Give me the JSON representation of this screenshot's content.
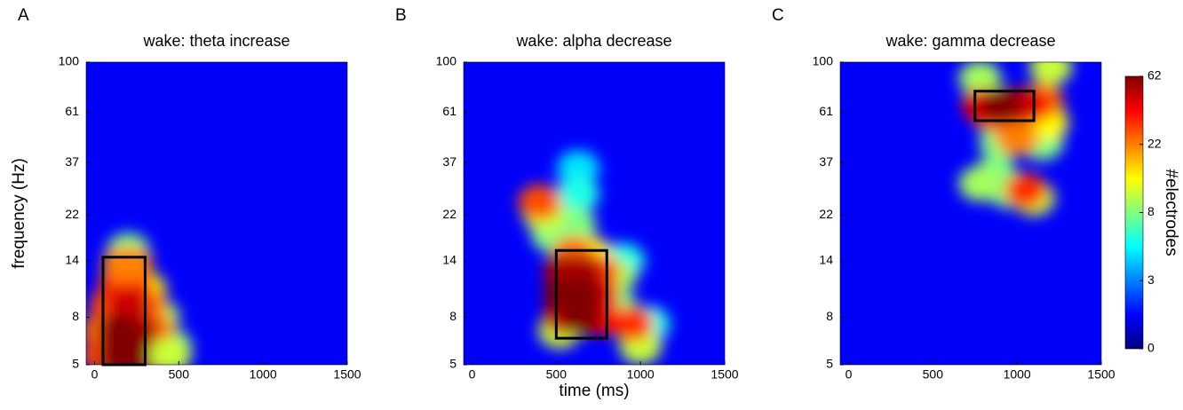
{
  "chart_data": [
    {
      "type": "heatmap",
      "panel_label": "A",
      "title": "wake: theta increase",
      "ylabel": "frequency (Hz)",
      "xlim": [
        -50,
        1500
      ],
      "xticks": [
        0,
        500,
        1000,
        1500
      ],
      "ylim": [
        5,
        100
      ],
      "yticks": [
        5,
        8,
        14,
        22,
        37,
        61,
        100
      ],
      "yscale": "log",
      "x": [
        200,
        380,
        450,
        300,
        50,
        350,
        100,
        350,
        300,
        150,
        220,
        170,
        220,
        50,
        250,
        200,
        150,
        250,
        150,
        450
      ],
      "y": [
        15.5,
        8,
        6,
        10.5,
        7,
        7,
        9,
        5.5,
        9,
        11,
        11,
        13.5,
        13.5,
        5.5,
        7,
        9,
        5.5,
        5.5,
        7,
        5.5
      ],
      "values": [
        8,
        10,
        8,
        15,
        25,
        25,
        30,
        40,
        25,
        35,
        35,
        22,
        22,
        30,
        55,
        50,
        62,
        62,
        62,
        12
      ],
      "boxes": [
        {
          "x": [
            50,
            300
          ],
          "y": [
            5,
            14.5
          ]
        }
      ]
    },
    {
      "type": "heatmap",
      "panel_label": "B",
      "title": "wake: alpha decrease",
      "xlabel": "time (ms)",
      "xlim": [
        -50,
        1500
      ],
      "xticks": [
        0,
        500,
        1000,
        1500
      ],
      "ylim": [
        5,
        100
      ],
      "yticks": [
        5,
        8,
        14,
        22,
        37,
        61,
        100
      ],
      "yscale": "log",
      "x": [
        630,
        630,
        1050,
        900,
        850,
        850,
        610,
        480,
        520,
        1000,
        430,
        700,
        600,
        750,
        400,
        950,
        750,
        750,
        550,
        650,
        550,
        650,
        550,
        650
      ],
      "y": [
        35,
        27,
        7.5,
        14,
        12,
        9,
        20,
        18,
        7,
        6,
        22,
        15,
        15,
        12.5,
        25,
        7.5,
        8,
        10,
        12.5,
        12.5,
        8,
        8,
        10,
        10
      ],
      "values": [
        5,
        6,
        6,
        6,
        10,
        8,
        8,
        8,
        12,
        12,
        12,
        15,
        25,
        30,
        30,
        35,
        40,
        45,
        55,
        55,
        50,
        62,
        62,
        62
      ],
      "boxes": [
        {
          "x": [
            500,
            800
          ],
          "y": [
            6.5,
            15.5
          ]
        }
      ]
    },
    {
      "type": "heatmap",
      "panel_label": "C",
      "title": "wake: gamma decrease",
      "xlim": [
        -50,
        1500
      ],
      "xticks": [
        0,
        500,
        1000,
        1500
      ],
      "ylim": [
        5,
        100
      ],
      "yticks": [
        5,
        8,
        14,
        22,
        37,
        61,
        100
      ],
      "yscale": "log",
      "x": [
        900,
        870,
        950,
        1150,
        780,
        780,
        1200,
        1100,
        1180,
        1000,
        1150,
        850,
        1050,
        1080,
        800,
        1000,
        900
      ],
      "y": [
        45,
        33,
        28,
        45,
        30,
        85,
        95,
        26,
        55,
        47,
        68,
        60,
        28,
        65,
        65,
        65,
        65
      ],
      "values": [
        8,
        8,
        8,
        8,
        10,
        10,
        12,
        12,
        15,
        22,
        25,
        30,
        35,
        40,
        45,
        50,
        62
      ],
      "boxes": [
        {
          "x": [
            750,
            1100
          ],
          "y": [
            56,
            75
          ]
        }
      ],
      "colorbar": {
        "label": "#electrodes",
        "ticks": [
          0,
          3,
          8,
          22,
          62
        ]
      }
    }
  ]
}
